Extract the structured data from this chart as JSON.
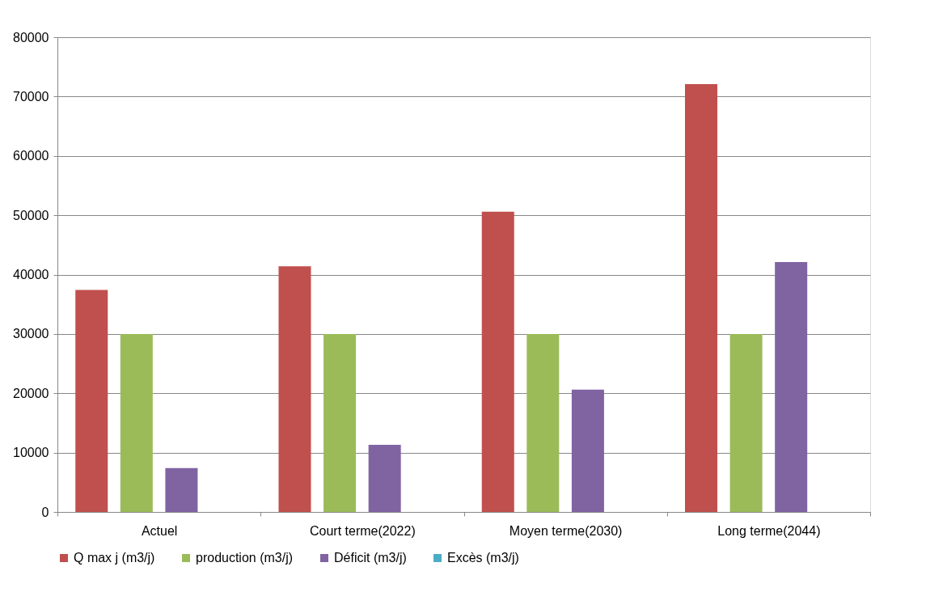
{
  "chart_data": {
    "type": "bar",
    "categories": [
      "Actuel",
      "Court terme(2022)",
      "Moyen terme(2030)",
      "Long terme(2044)"
    ],
    "series": [
      {
        "name": "Q max j (m3/j)",
        "color": "#c0504d",
        "values": [
          37400,
          41400,
          50600,
          72100
        ]
      },
      {
        "name": "production (m3/j)",
        "color": "#9bbb59",
        "values": [
          30000,
          30000,
          30000,
          30000
        ]
      },
      {
        "name": "Déficit (m3/j)",
        "color": "#8064a2",
        "values": [
          7400,
          11300,
          20600,
          42100
        ]
      },
      {
        "name": "Excès (m3/j)",
        "color": "#4bacc6",
        "values": [
          0,
          0,
          0,
          0
        ]
      }
    ],
    "ylim": [
      0,
      80000
    ],
    "yticks": [
      0,
      10000,
      20000,
      30000,
      40000,
      50000,
      60000,
      70000,
      80000
    ],
    "grid": "y",
    "legend": "bottom"
  }
}
